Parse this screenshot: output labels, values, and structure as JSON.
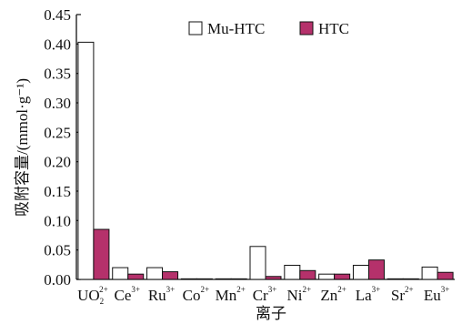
{
  "chart_data": {
    "type": "bar",
    "categories": [
      {
        "base": "UO",
        "sub": "2",
        "sup": "2+"
      },
      {
        "base": "Ce",
        "sup": "3+"
      },
      {
        "base": "Ru",
        "sup": "3+"
      },
      {
        "base": "Co",
        "sup": "2+"
      },
      {
        "base": "Mn",
        "sup": "2+"
      },
      {
        "base": "Cr",
        "sup": "3+"
      },
      {
        "base": "Ni",
        "sup": "2+"
      },
      {
        "base": "Zn",
        "sup": "2+"
      },
      {
        "base": "La",
        "sup": "3+"
      },
      {
        "base": "Sr",
        "sup": "2+"
      },
      {
        "base": "Eu",
        "sup": "3+"
      }
    ],
    "series": [
      {
        "name": "Mu-HTC",
        "color": "#ffffff",
        "values": [
          0.403,
          0.02,
          0.02,
          0.001,
          0.001,
          0.056,
          0.024,
          0.009,
          0.024,
          0.001,
          0.021
        ]
      },
      {
        "name": "HTC",
        "color": "#b5316b",
        "values": [
          0.085,
          0.009,
          0.013,
          0.001,
          0.001,
          0.005,
          0.015,
          0.009,
          0.033,
          0.001,
          0.012
        ]
      }
    ],
    "ylim": [
      0,
      0.45
    ],
    "yticks": [
      "0.00",
      "0.05",
      "0.10",
      "0.15",
      "0.20",
      "0.25",
      "0.30",
      "0.35",
      "0.40",
      "0.45"
    ],
    "ylabel": "吸附容量/(mmol·g⁻¹)",
    "xlabel": "离子",
    "legend_position": "top-right",
    "grid": false
  }
}
